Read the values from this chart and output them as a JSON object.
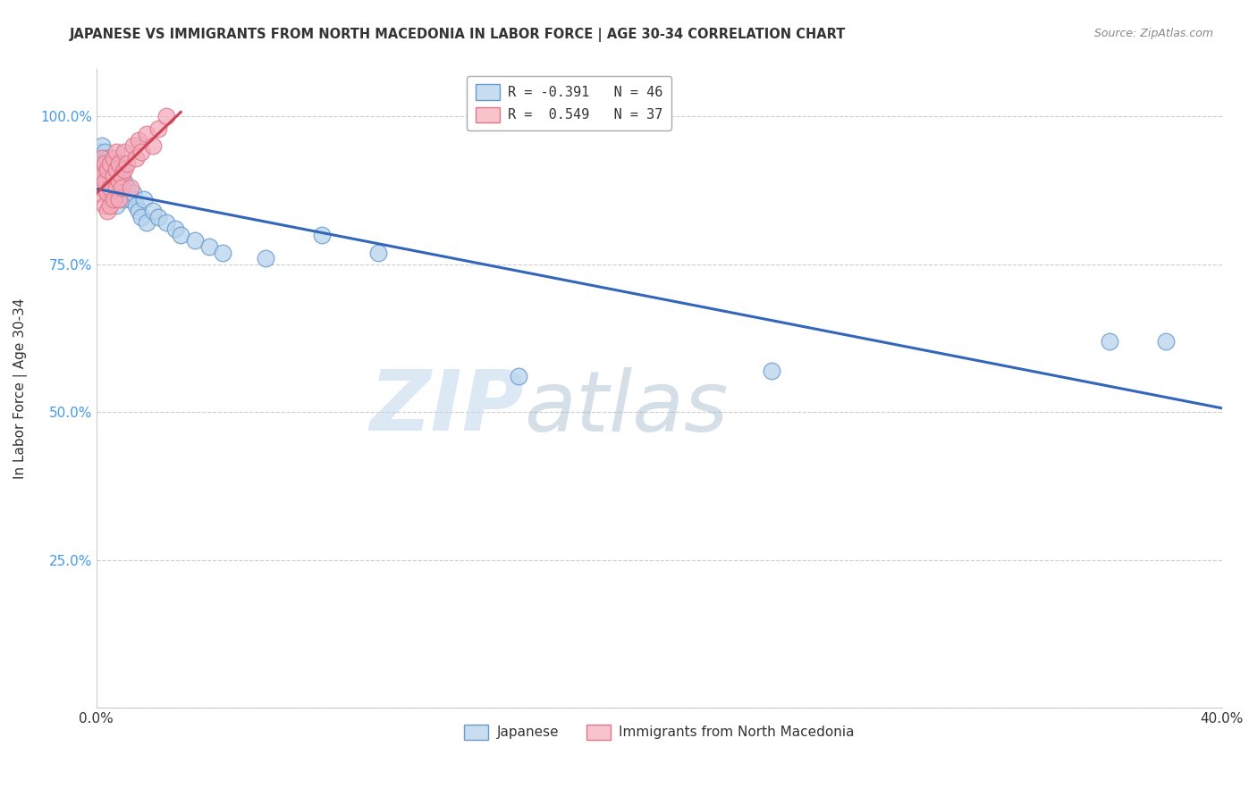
{
  "title": "JAPANESE VS IMMIGRANTS FROM NORTH MACEDONIA IN LABOR FORCE | AGE 30-34 CORRELATION CHART",
  "source": "Source: ZipAtlas.com",
  "ylabel": "In Labor Force | Age 30-34",
  "xmin": 0.0,
  "xmax": 0.4,
  "ymin": 0.0,
  "ymax": 1.08,
  "yticks": [
    0.0,
    0.25,
    0.5,
    0.75,
    1.0
  ],
  "ytick_labels": [
    "",
    "25.0%",
    "50.0%",
    "75.0%",
    "100.0%"
  ],
  "xticks": [
    0.0,
    0.1,
    0.2,
    0.3,
    0.4
  ],
  "xtick_labels": [
    "0.0%",
    "",
    "",
    "",
    "40.0%"
  ],
  "legend_entries": [
    {
      "label": "R = -0.391   N = 46",
      "color": "#a8c4e0"
    },
    {
      "label": "R =  0.549   N = 37",
      "color": "#f4a0b0"
    }
  ],
  "legend_label_japanese": "Japanese",
  "legend_label_macedonia": "Immigrants from North Macedonia",
  "watermark_zip": "ZIP",
  "watermark_atlas": "atlas",
  "blue_color": "#b8d4ec",
  "pink_color": "#f4aabb",
  "blue_edge_color": "#6699cc",
  "pink_edge_color": "#dd7788",
  "blue_line_color": "#3366bb",
  "pink_line_color": "#cc4455",
  "blue_scatter_x": [
    0.001,
    0.002,
    0.002,
    0.003,
    0.003,
    0.003,
    0.004,
    0.004,
    0.005,
    0.005,
    0.005,
    0.006,
    0.006,
    0.006,
    0.007,
    0.007,
    0.007,
    0.008,
    0.008,
    0.009,
    0.009,
    0.01,
    0.01,
    0.011,
    0.012,
    0.013,
    0.014,
    0.015,
    0.016,
    0.017,
    0.018,
    0.02,
    0.022,
    0.025,
    0.028,
    0.03,
    0.035,
    0.04,
    0.045,
    0.06,
    0.08,
    0.1,
    0.15,
    0.24,
    0.36,
    0.38
  ],
  "blue_scatter_y": [
    0.94,
    0.95,
    0.92,
    0.94,
    0.91,
    0.89,
    0.93,
    0.9,
    0.92,
    0.89,
    0.87,
    0.91,
    0.9,
    0.87,
    0.92,
    0.88,
    0.85,
    0.9,
    0.87,
    0.91,
    0.88,
    0.89,
    0.86,
    0.88,
    0.86,
    0.87,
    0.85,
    0.84,
    0.83,
    0.86,
    0.82,
    0.84,
    0.83,
    0.82,
    0.81,
    0.8,
    0.79,
    0.78,
    0.77,
    0.76,
    0.8,
    0.77,
    0.56,
    0.57,
    0.62,
    0.62
  ],
  "pink_scatter_x": [
    0.001,
    0.001,
    0.002,
    0.002,
    0.002,
    0.003,
    0.003,
    0.003,
    0.004,
    0.004,
    0.004,
    0.005,
    0.005,
    0.005,
    0.006,
    0.006,
    0.006,
    0.007,
    0.007,
    0.007,
    0.008,
    0.008,
    0.008,
    0.009,
    0.009,
    0.01,
    0.01,
    0.011,
    0.012,
    0.013,
    0.014,
    0.015,
    0.016,
    0.018,
    0.02,
    0.022,
    0.025
  ],
  "pink_scatter_y": [
    0.87,
    0.91,
    0.88,
    0.9,
    0.93,
    0.89,
    0.92,
    0.85,
    0.91,
    0.87,
    0.84,
    0.92,
    0.88,
    0.85,
    0.9,
    0.93,
    0.86,
    0.91,
    0.88,
    0.94,
    0.89,
    0.92,
    0.86,
    0.9,
    0.88,
    0.91,
    0.94,
    0.92,
    0.88,
    0.95,
    0.93,
    0.96,
    0.94,
    0.97,
    0.95,
    0.98,
    1.0
  ],
  "background_color": "#ffffff",
  "grid_color": "#cccccc"
}
